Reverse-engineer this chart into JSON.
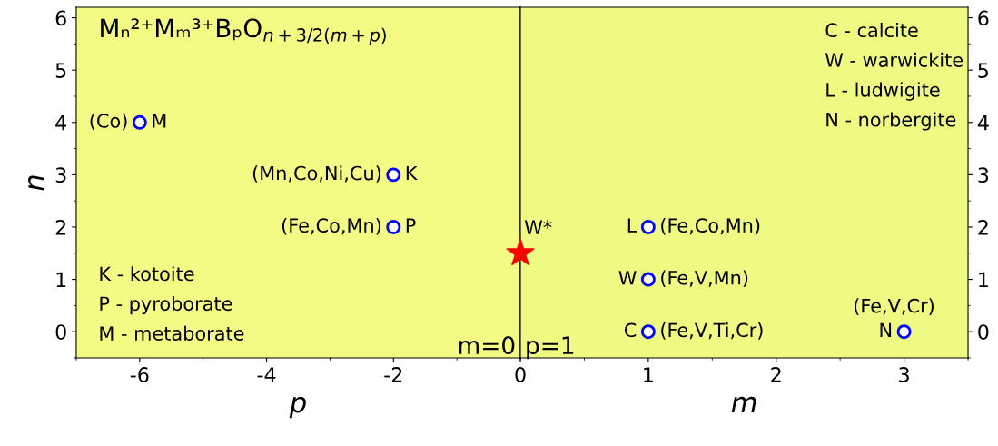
{
  "chart_data": [
    {
      "type": "scatter",
      "xlabel": "p",
      "ylabel": "n",
      "xlim": [
        -7,
        0
      ],
      "ylim": [
        -0.5,
        6.2
      ],
      "xticks": [
        -6,
        -4,
        -2,
        0
      ],
      "yticks": [
        0,
        1,
        2,
        3,
        4,
        5,
        6
      ],
      "grid": false,
      "legend": false,
      "series": [
        {
          "color": "#0000ff",
          "marker": "circle",
          "x": [
            -6,
            -2,
            -2
          ],
          "values": [
            4,
            3,
            2
          ]
        }
      ],
      "annotations": [
        "Mₙ²⁺Mₘ³⁺BₚO$_{n+3/2(m+p)}$",
        "K - kotoite",
        "P - pyroborate",
        "M - metaborate",
        "m=0",
        {
          "text": "(Co)",
          "x": -6,
          "y": 4
        },
        {
          "text": "M",
          "x": -6,
          "y": 4
        },
        {
          "text": "(Mn,Co,Ni,Cu)",
          "x": -2,
          "y": 3
        },
        {
          "text": "K",
          "x": -2,
          "y": 3
        },
        {
          "text": "(Fe,Co,Mn)",
          "x": -2,
          "y": 2
        },
        {
          "text": "P",
          "x": -2,
          "y": 2
        }
      ]
    },
    {
      "type": "scatter",
      "xlabel": "m",
      "xlim": [
        0,
        3.5
      ],
      "ylim": [
        -0.5,
        6.2
      ],
      "xticks": [
        1,
        2,
        3
      ],
      "yticks": [
        0,
        1,
        2,
        3,
        4,
        5,
        6
      ],
      "grid": false,
      "legend": false,
      "series": [
        {
          "color": "#0000ff",
          "marker": "circle",
          "x": [
            1,
            1,
            1,
            3
          ],
          "values": [
            2,
            1,
            0,
            0
          ]
        },
        {
          "color": "#ff0000",
          "marker": "star",
          "x": [
            0
          ],
          "values": [
            1.5
          ]
        }
      ],
      "annotations": [
        "C - calcite",
        "W - warwickite",
        "L - ludwigite",
        "N - norbergite",
        "p=1",
        {
          "text": "W*",
          "x": 0,
          "y": 1.5
        },
        {
          "text": "L",
          "x": 1,
          "y": 2
        },
        {
          "text": "(Fe,Co,Mn)",
          "x": 1,
          "y": 2
        },
        {
          "text": "W",
          "x": 1,
          "y": 1
        },
        {
          "text": "(Fe,V,Mn)",
          "x": 1,
          "y": 1
        },
        {
          "text": "C",
          "x": 1,
          "y": 0
        },
        {
          "text": "(Fe,V,Ti,Cr)",
          "x": 1,
          "y": 0
        },
        {
          "text": "N",
          "x": 3,
          "y": 0
        },
        {
          "text": "(Fe,V,Cr)",
          "x": 3,
          "y": 0
        }
      ]
    }
  ]
}
